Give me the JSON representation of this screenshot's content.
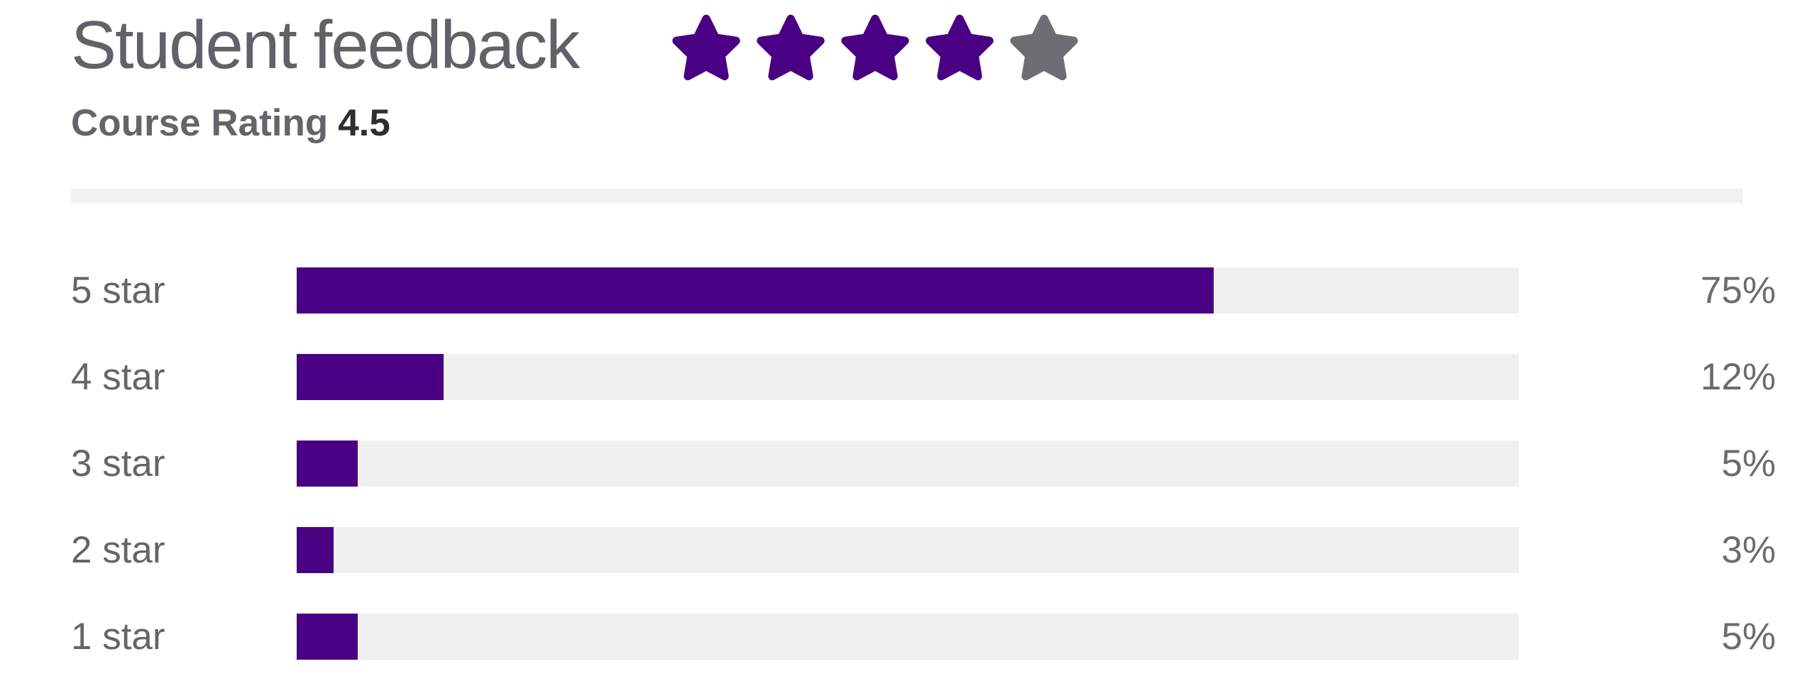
{
  "header": {
    "title": "Student feedback",
    "rating_label": "Course Rating",
    "rating_value": "4.5",
    "stars": {
      "filled": 4,
      "total": 5
    }
  },
  "colors": {
    "star_filled": "#4a0082",
    "star_empty": "#6d6d73",
    "bar_fill": "#4a0082",
    "bar_track": "#f0f0f0",
    "divider": "#f1f1f1",
    "text_gray": "#63656c",
    "rating_value_dark": "#2d2e31"
  },
  "chart_data": {
    "type": "bar",
    "orientation": "horizontal",
    "title": "Student feedback",
    "categories": [
      "5 star",
      "4 star",
      "3 star",
      "2 star",
      "1 star"
    ],
    "values": [
      75,
      12,
      5,
      3,
      5
    ],
    "value_labels": [
      "75%",
      "12%",
      "5%",
      "3%",
      "5%"
    ],
    "xlim": [
      0,
      100
    ],
    "grid": false,
    "legend": false
  }
}
